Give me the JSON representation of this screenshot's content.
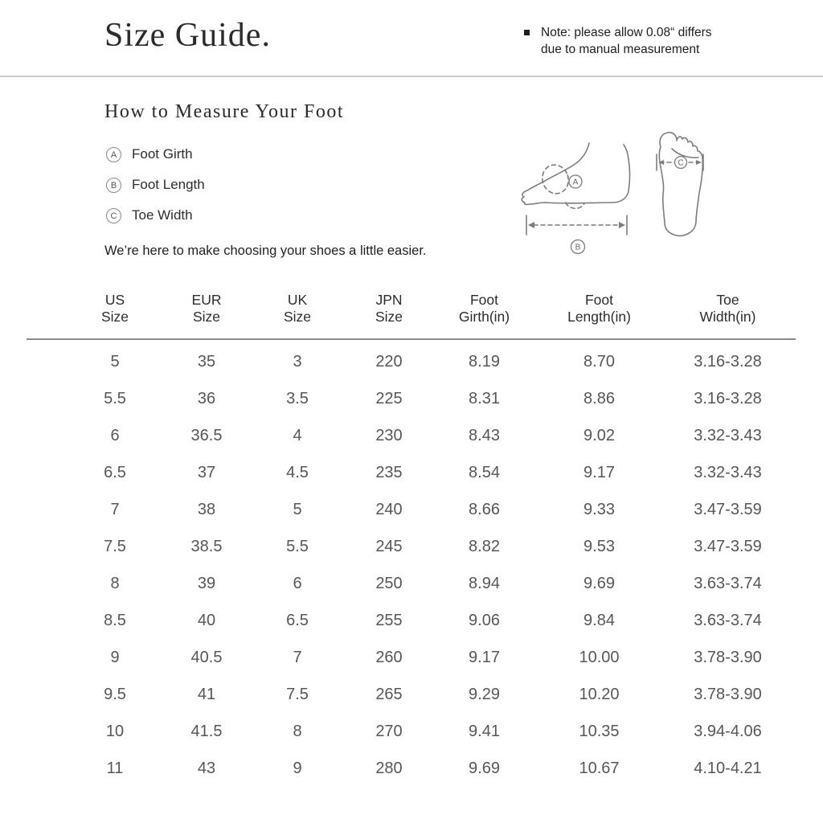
{
  "header": {
    "title": "Size Guide.",
    "note_lines": [
      "Note: please allow 0.08“ differs",
      "due to manual measurement"
    ]
  },
  "measure": {
    "heading": "How to Measure Your Foot",
    "items": [
      {
        "key": "A",
        "label": "Foot Girth"
      },
      {
        "key": "B",
        "label": "Foot Length"
      },
      {
        "key": "C",
        "label": "Toe Width"
      }
    ],
    "intro": "We’re here to make choosing your shoes a little easier.",
    "diagram": {
      "side_girth_label": "A",
      "side_length_label": "B",
      "sole_width_label": "C"
    }
  },
  "size_table": {
    "columns": [
      {
        "line1": "US",
        "line2": "Size"
      },
      {
        "line1": "EUR",
        "line2": "Size"
      },
      {
        "line1": "UK",
        "line2": "Size"
      },
      {
        "line1": "JPN",
        "line2": "Size"
      },
      {
        "line1": "Foot",
        "line2": "Girth(in)"
      },
      {
        "line1": "Foot",
        "line2": "Length(in)"
      },
      {
        "line1": "Toe",
        "line2": "Width(in)"
      }
    ],
    "rows": [
      [
        "5",
        "35",
        "3",
        "220",
        "8.19",
        "8.70",
        "3.16-3.28"
      ],
      [
        "5.5",
        "36",
        "3.5",
        "225",
        "8.31",
        "8.86",
        "3.16-3.28"
      ],
      [
        "6",
        "36.5",
        "4",
        "230",
        "8.43",
        "9.02",
        "3.32-3.43"
      ],
      [
        "6.5",
        "37",
        "4.5",
        "235",
        "8.54",
        "9.17",
        "3.32-3.43"
      ],
      [
        "7",
        "38",
        "5",
        "240",
        "8.66",
        "9.33",
        "3.47-3.59"
      ],
      [
        "7.5",
        "38.5",
        "5.5",
        "245",
        "8.82",
        "9.53",
        "3.47-3.59"
      ],
      [
        "8",
        "39",
        "6",
        "250",
        "8.94",
        "9.69",
        "3.63-3.74"
      ],
      [
        "8.5",
        "40",
        "6.5",
        "255",
        "9.06",
        "9.84",
        "3.63-3.74"
      ],
      [
        "9",
        "40.5",
        "7",
        "260",
        "9.17",
        "10.00",
        "3.78-3.90"
      ],
      [
        "9.5",
        "41",
        "7.5",
        "265",
        "9.29",
        "10.20",
        "3.78-3.90"
      ],
      [
        "10",
        "41.5",
        "8",
        "270",
        "9.41",
        "10.35",
        "3.94-4.06"
      ],
      [
        "11",
        "43",
        "9",
        "280",
        "9.69",
        "10.67",
        "4.10-4.21"
      ]
    ]
  },
  "colors": {
    "text_primary": "#2b2b2b",
    "text_table": "#575757",
    "divider_light": "#c9c9c9",
    "divider_dark": "#8a8a8a",
    "illustration_stroke": "#7d7d7d"
  }
}
